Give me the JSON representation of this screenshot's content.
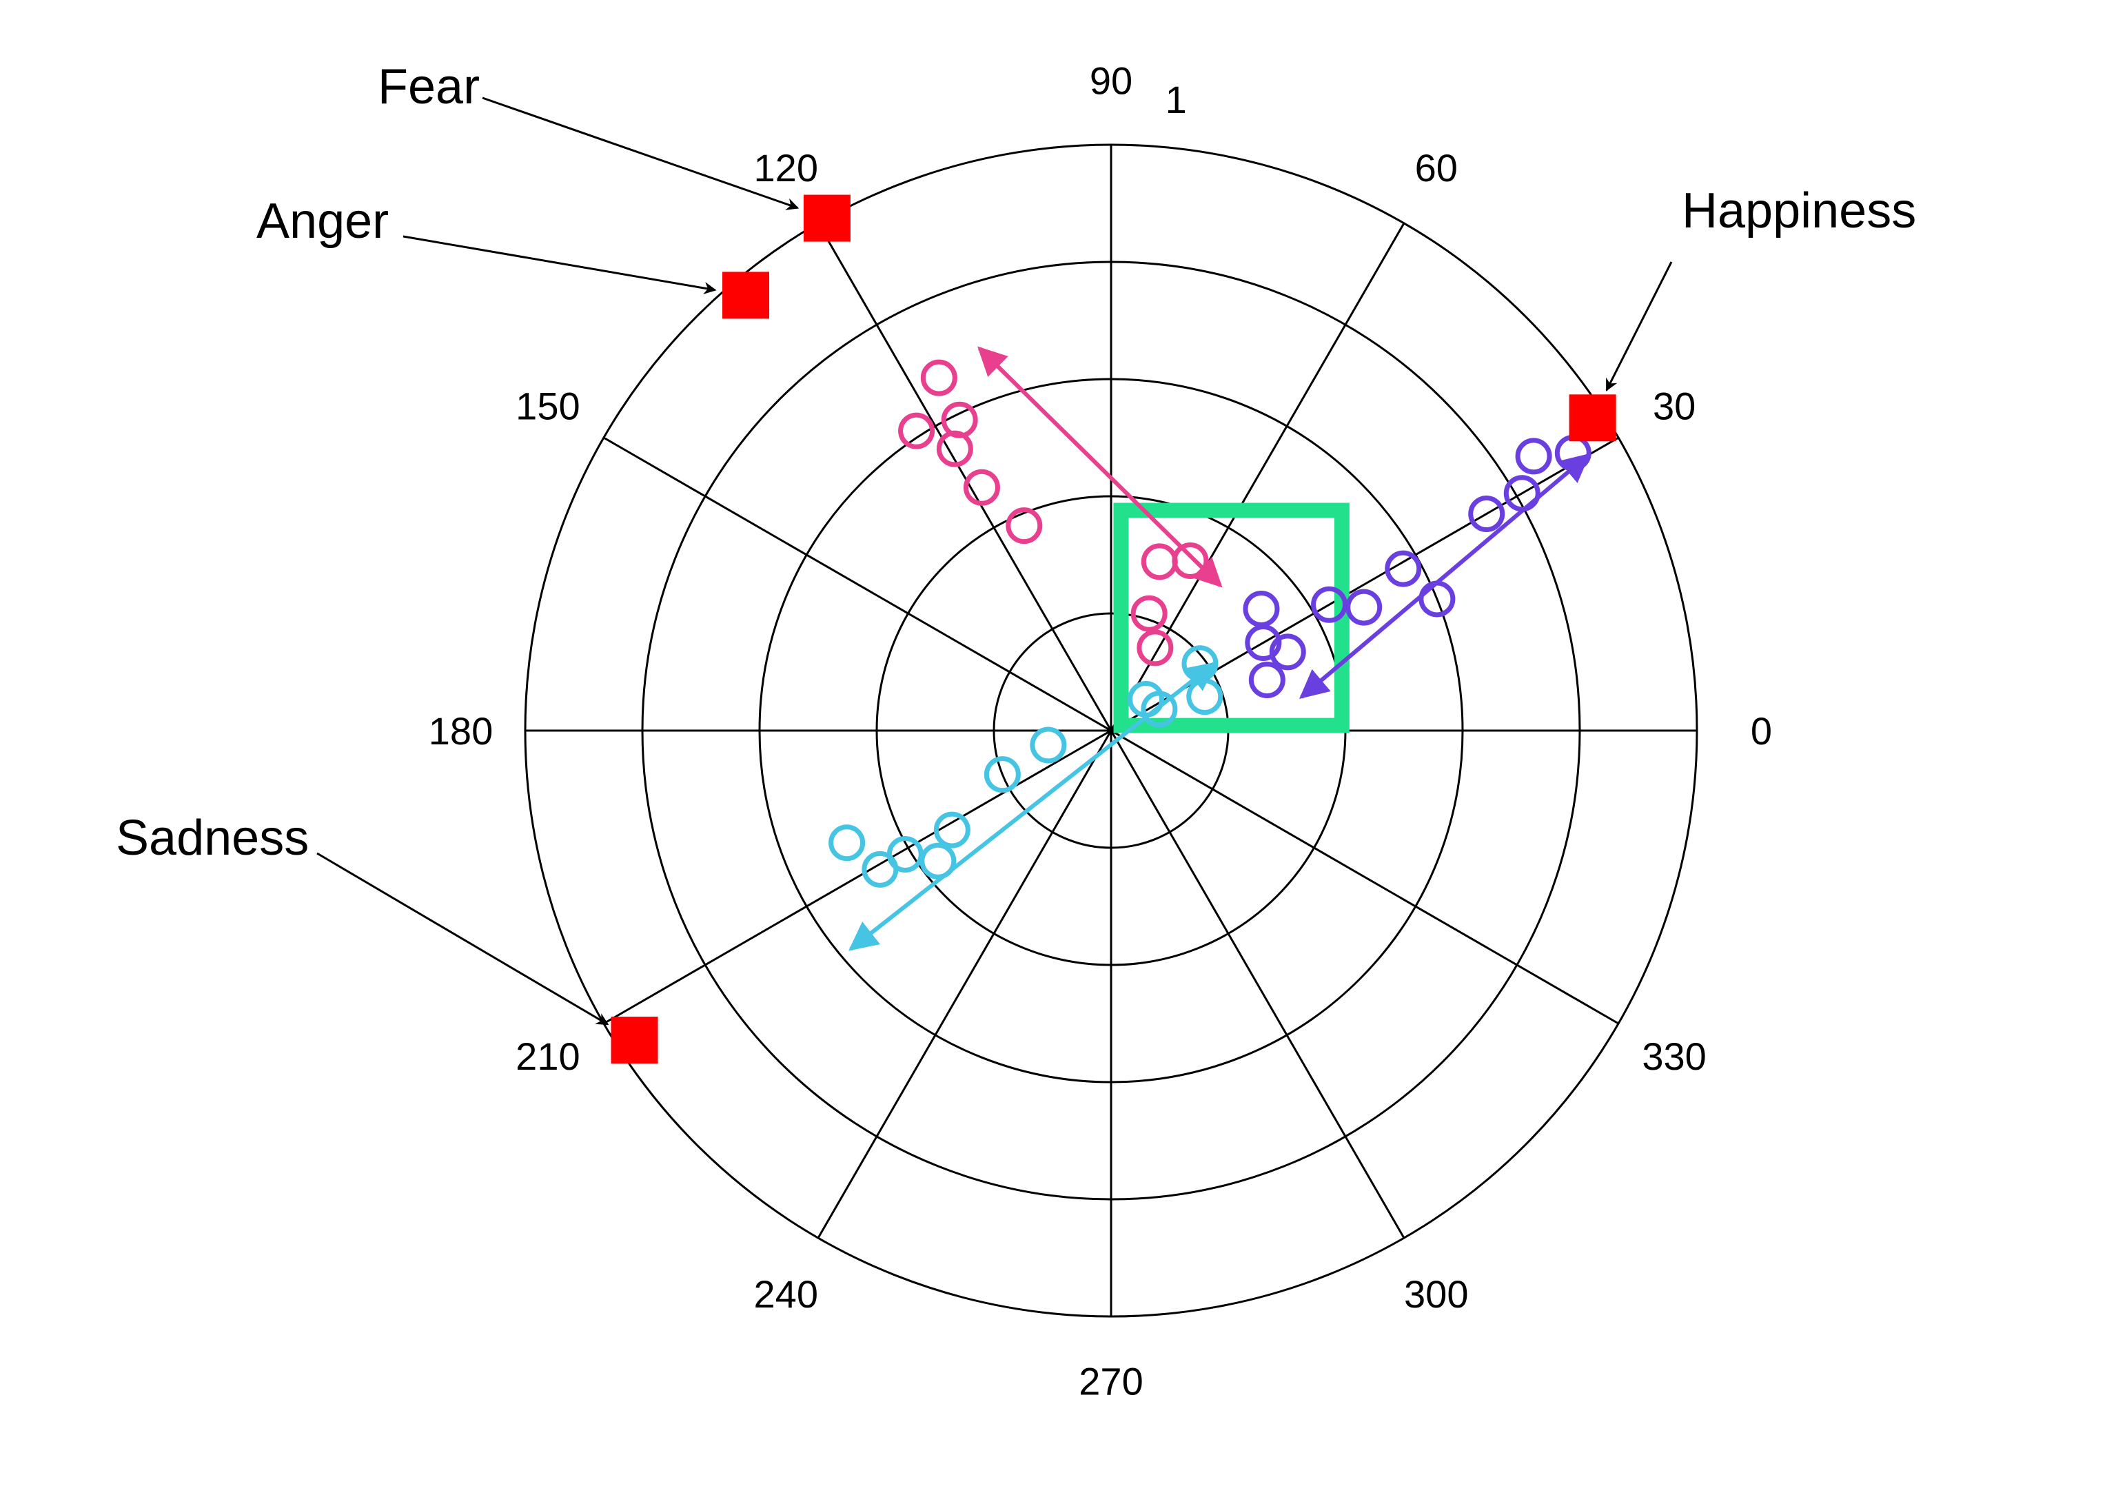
{
  "chart_data": {
    "type": "scatter",
    "coordinate_system": "polar",
    "title": "",
    "radial_max": 1,
    "radial_tick_labels": [
      "1"
    ],
    "rings": 5,
    "angle_ticks": [
      "0",
      "30",
      "60",
      "90",
      "120",
      "150",
      "180",
      "210",
      "240",
      "270",
      "300",
      "330"
    ],
    "emotions": [
      {
        "name": "Fear",
        "theta": 119,
        "r": 1.0
      },
      {
        "name": "Anger",
        "theta": 130,
        "r": 0.97
      },
      {
        "name": "Happiness",
        "theta": 33,
        "r": 0.98
      },
      {
        "name": "Sadness",
        "theta": 213,
        "r": 0.97
      }
    ],
    "series": [
      {
        "name": "",
        "color": "#e8408e",
        "points": [
          {
            "theta": 116,
            "r": 0.67
          },
          {
            "theta": 116,
            "r": 0.59
          },
          {
            "theta": 123,
            "r": 0.61
          },
          {
            "theta": 119,
            "r": 0.55
          },
          {
            "theta": 118,
            "r": 0.47
          },
          {
            "theta": 113,
            "r": 0.38
          },
          {
            "theta": 74,
            "r": 0.3
          },
          {
            "theta": 65,
            "r": 0.32
          },
          {
            "theta": 72,
            "r": 0.21
          },
          {
            "theta": 62,
            "r": 0.16
          }
        ],
        "arrow": {
          "from_theta": 53,
          "from_r": 0.31,
          "to_theta": 109,
          "to_r": 0.69
        }
      },
      {
        "name": "",
        "color": "#6a3fe0",
        "points": [
          {
            "theta": 31,
            "r": 0.92
          },
          {
            "theta": 33,
            "r": 0.86
          },
          {
            "theta": 30,
            "r": 0.81
          },
          {
            "theta": 30,
            "r": 0.74
          },
          {
            "theta": 29,
            "r": 0.57
          },
          {
            "theta": 22,
            "r": 0.6
          },
          {
            "theta": 26,
            "r": 0.48
          },
          {
            "theta": 30,
            "r": 0.43
          },
          {
            "theta": 39,
            "r": 0.33
          },
          {
            "theta": 30,
            "r": 0.3
          },
          {
            "theta": 24,
            "r": 0.33
          },
          {
            "theta": 18,
            "r": 0.28
          }
        ],
        "arrow": {
          "from_theta": 10,
          "from_r": 0.33,
          "to_theta": 30,
          "to_r": 0.94
        }
      },
      {
        "name": "",
        "color": "#45c4e4",
        "points": [
          {
            "theta": 203,
            "r": 0.49
          },
          {
            "theta": 211,
            "r": 0.46
          },
          {
            "theta": 211,
            "r": 0.41
          },
          {
            "theta": 217,
            "r": 0.37
          },
          {
            "theta": 212,
            "r": 0.32
          },
          {
            "theta": 202,
            "r": 0.2
          },
          {
            "theta": 193,
            "r": 0.11
          },
          {
            "theta": 37,
            "r": 0.19
          },
          {
            "theta": 20,
            "r": 0.17
          },
          {
            "theta": 42,
            "r": 0.08
          },
          {
            "theta": 24,
            "r": 0.09
          }
        ],
        "arrow": {
          "from_theta": 33,
          "from_r": 0.21,
          "to_theta": 220,
          "to_r": 0.58
        }
      }
    ],
    "highlight_box": {
      "color": "#22e08c",
      "theta_range": [
        10,
        70
      ],
      "r_range": [
        0.05,
        0.4
      ]
    }
  }
}
